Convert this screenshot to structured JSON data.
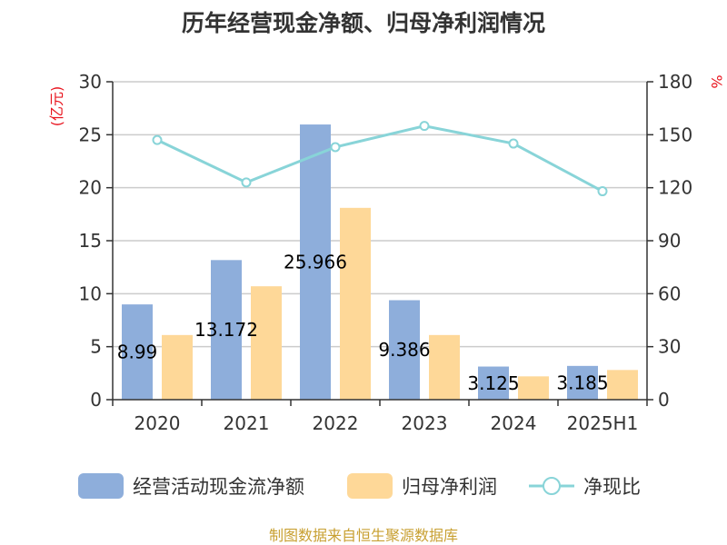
{
  "chart_data": {
    "type": "bar",
    "title": "历年经营现金净额、归母净利润情况",
    "categories": [
      "2020",
      "2021",
      "2022",
      "2023",
      "2024",
      "2025H1"
    ],
    "series": [
      {
        "name": "经营活动现金流净额",
        "kind": "bar",
        "axis": "left",
        "color": "#8eaedb",
        "values": [
          8.99,
          13.172,
          25.966,
          9.386,
          3.125,
          3.185
        ],
        "labels": [
          "8.99",
          "13.172",
          "25.966",
          "9.386",
          "3.125",
          "3.185"
        ]
      },
      {
        "name": "归母净利润",
        "kind": "bar",
        "axis": "left",
        "color": "#fed898",
        "values": [
          6.1,
          10.7,
          18.1,
          6.1,
          2.2,
          2.8
        ]
      },
      {
        "name": "净现比",
        "kind": "line",
        "axis": "right",
        "color": "#88d4d8",
        "values": [
          147,
          123,
          143,
          155,
          145,
          118
        ]
      }
    ],
    "left_axis": {
      "unit": "(亿元)",
      "min": 0,
      "max": 30,
      "ticks": [
        0,
        5,
        10,
        15,
        20,
        25,
        30
      ]
    },
    "right_axis": {
      "unit": "%",
      "min": 0,
      "max": 180,
      "ticks": [
        0,
        30,
        60,
        90,
        120,
        150,
        180
      ]
    },
    "grid": true,
    "legend_position": "bottom",
    "source": "制图数据来自恒生聚源数据库"
  }
}
